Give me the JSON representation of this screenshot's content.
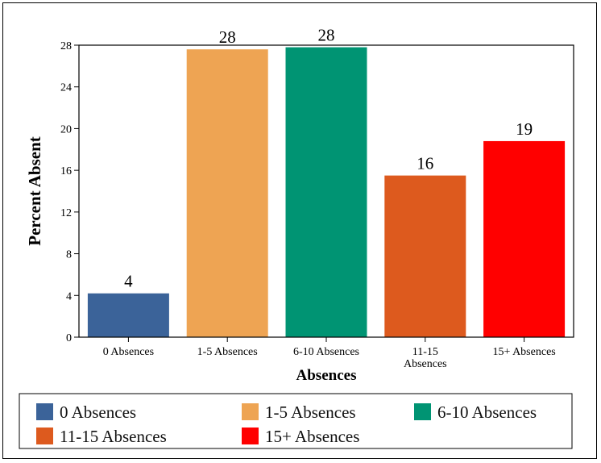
{
  "chart_data": {
    "type": "bar",
    "title": "",
    "xlabel": "Absences",
    "ylabel": "Percent Absent",
    "ylim": [
      0,
      28
    ],
    "yticks": [
      0,
      4,
      8,
      12,
      16,
      20,
      24,
      28
    ],
    "categories": [
      {
        "lines": [
          "0 Absences"
        ]
      },
      {
        "lines": [
          "1-5 Absences"
        ]
      },
      {
        "lines": [
          "6-10 Absences"
        ]
      },
      {
        "lines": [
          "11-15",
          "Absences"
        ]
      },
      {
        "lines": [
          "15+ Absences"
        ]
      }
    ],
    "values": [
      4.2,
      27.6,
      27.8,
      15.5,
      18.8
    ],
    "data_labels": [
      "4",
      "28",
      "28",
      "16",
      "19"
    ],
    "colors": [
      "#3b6399",
      "#eea453",
      "#009473",
      "#dd5a1e",
      "#ff0000"
    ],
    "grid": false,
    "legend": {
      "position": "bottom",
      "entries": [
        "0 Absences",
        "1-5 Absences",
        "6-10 Absences",
        "11-15 Absences",
        "15+ Absences"
      ]
    }
  }
}
